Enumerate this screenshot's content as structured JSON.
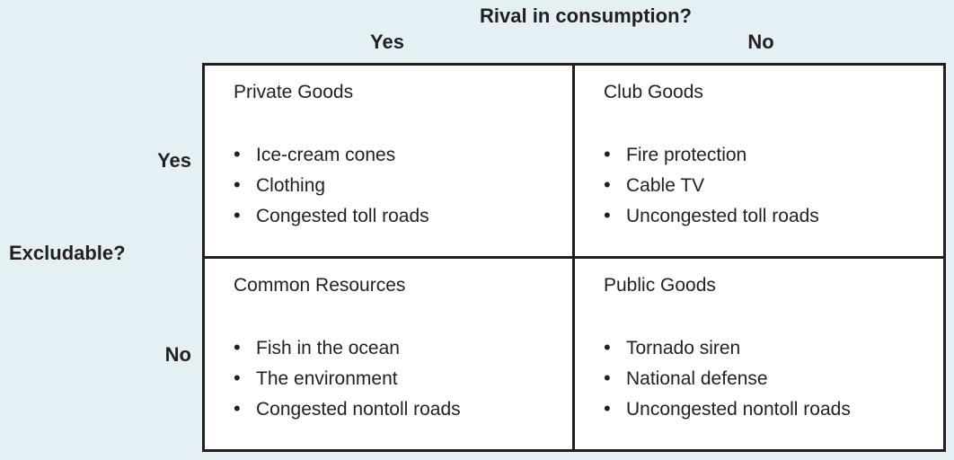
{
  "figure": {
    "background_color": "#e4f0f3",
    "border_color": "#231f20",
    "text_color": "#231f20"
  },
  "axes": {
    "column_question": "Rival in consumption?",
    "column_yes": "Yes",
    "column_no": "No",
    "row_question": "Excludable?",
    "row_yes": "Yes",
    "row_no": "No"
  },
  "quadrants": [
    {
      "position": "top-left",
      "rival": "Yes",
      "excludable": "Yes",
      "title": "Private Goods",
      "items": [
        "Ice-cream cones",
        "Clothing",
        "Congested toll roads"
      ]
    },
    {
      "position": "top-right",
      "rival": "No",
      "excludable": "Yes",
      "title": "Club Goods",
      "items": [
        "Fire protection",
        "Cable TV",
        "Uncongested toll roads"
      ]
    },
    {
      "position": "bottom-left",
      "rival": "Yes",
      "excludable": "No",
      "title": "Common Resources",
      "items": [
        "Fish in the ocean",
        "The environment",
        "Congested nontoll roads"
      ]
    },
    {
      "position": "bottom-right",
      "rival": "No",
      "excludable": "No",
      "title": "Public Goods",
      "items": [
        "Tornado siren",
        "National defense",
        "Uncongested nontoll roads"
      ]
    }
  ]
}
